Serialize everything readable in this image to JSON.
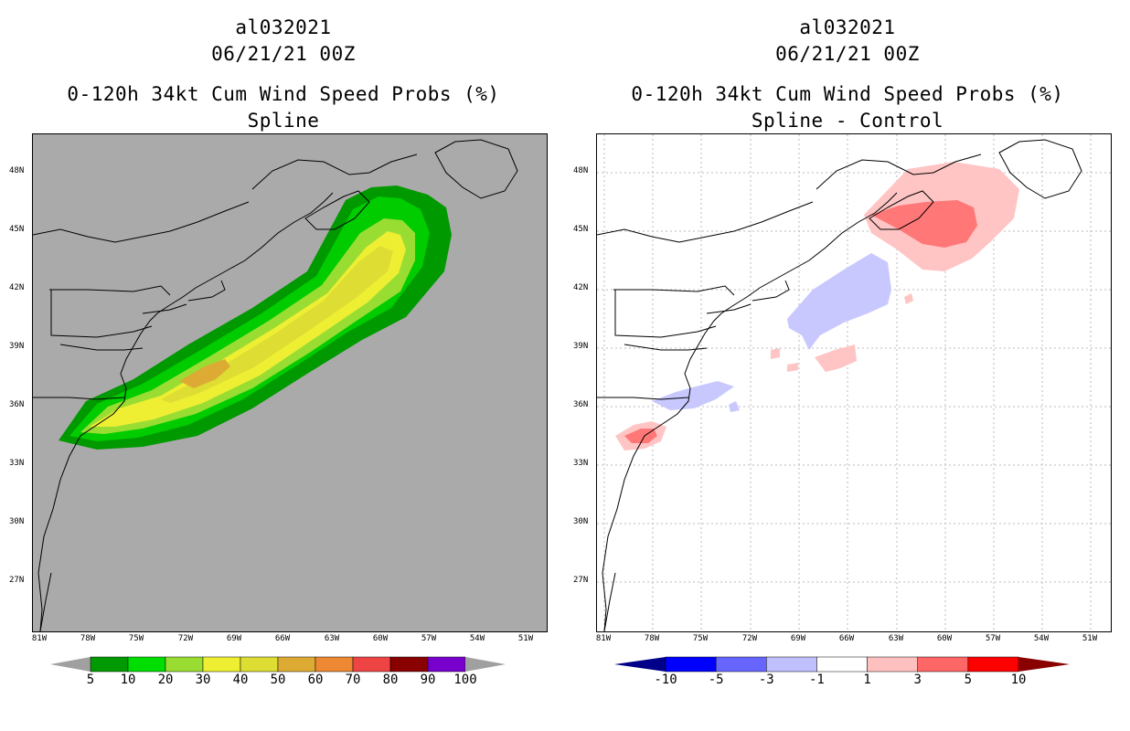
{
  "left_panel": {
    "storm_id": "al032021",
    "datetime": "06/21/21 00Z",
    "title": "0-120h 34kt Cum Wind Speed Probs (%)",
    "subtitle": "Spline",
    "background": "#aaaaaa"
  },
  "right_panel": {
    "storm_id": "al032021",
    "datetime": "06/21/21 00Z",
    "title": "0-120h 34kt Cum Wind Speed Probs (%)",
    "subtitle": "Spline - Control",
    "background": "#ffffff"
  },
  "lat_labels": [
    "48N",
    "45N",
    "42N",
    "39N",
    "36N",
    "33N",
    "30N",
    "27N"
  ],
  "lon_labels": [
    "81W",
    "78W",
    "75W",
    "72W",
    "69W",
    "66W",
    "63W",
    "60W",
    "57W",
    "54W",
    "51W"
  ],
  "left_colorbar": {
    "labels": [
      "5",
      "10",
      "20",
      "30",
      "40",
      "50",
      "60",
      "70",
      "80",
      "90",
      "100"
    ],
    "colors": [
      "#a0a0a0",
      "#009900",
      "#00dd00",
      "#99dd33",
      "#eeee33",
      "#dddd33",
      "#ddaa33",
      "#ee8833",
      "#ee4444",
      "#880000",
      "#7700cc",
      "#a0a0a0"
    ]
  },
  "right_colorbar": {
    "labels": [
      "-10",
      "-5",
      "-3",
      "-1",
      "1",
      "3",
      "5",
      "10"
    ],
    "colors": [
      "#000088",
      "#0000ff",
      "#6666ff",
      "#c0c0ff",
      "#ffffff",
      "#ffc0c0",
      "#ff6666",
      "#ff0000",
      "#880000"
    ]
  },
  "prob_colors": {
    "p5": "#009900",
    "p10": "#00cc00",
    "p20": "#99dd33",
    "p30": "#eeee33",
    "p40": "#dddd33",
    "p50": "#ddaa33",
    "p60": "#ee8833"
  },
  "diff_colors": {
    "pos_light": "#ffc4c4",
    "pos_mid": "#ff7777",
    "pos_strong": "#ff2222",
    "neg_light": "#c8c8ff",
    "neg_mid": "#8888ff"
  }
}
